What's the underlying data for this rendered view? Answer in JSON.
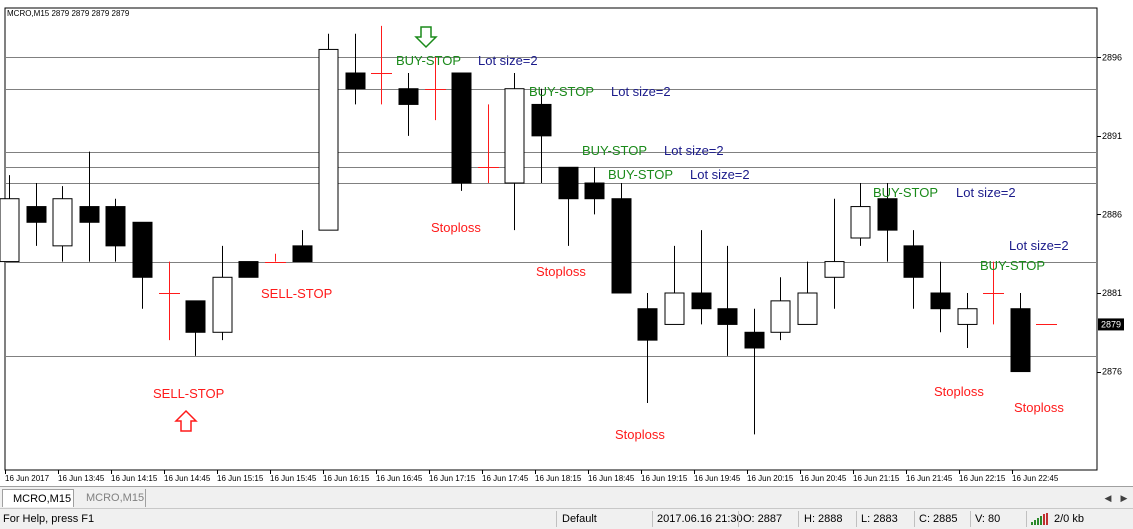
{
  "chart_title": "MCRO,M15  2879 2879 2879 2879",
  "current_price": "2879",
  "price_ticks": [
    "2896",
    "2891",
    "2886",
    "2881",
    "2876"
  ],
  "time_labels": [
    "16 Jun 2017",
    "16 Jun 13:45",
    "16 Jun 14:15",
    "16 Jun 14:45",
    "16 Jun 15:15",
    "16 Jun 15:45",
    "16 Jun 16:15",
    "16 Jun 16:45",
    "16 Jun 17:15",
    "16 Jun 17:45",
    "16 Jun 18:15",
    "16 Jun 18:45",
    "16 Jun 19:15",
    "16 Jun 19:45",
    "16 Jun 20:15",
    "16 Jun 20:45",
    "16 Jun 21:15",
    "16 Jun 21:45",
    "16 Jun 22:15",
    "16 Jun 22:45"
  ],
  "annotations": {
    "sell_stop": "SELL-STOP",
    "buy_stop": "BUY-STOP",
    "lot_size": "Lot size=2",
    "stoploss": "Stoploss"
  },
  "colors": {
    "buy": "#1a8a1a",
    "sell": "#ff1a1a",
    "lot": "#1a1a8a",
    "grid": "#808080",
    "bull": "#ffffff",
    "bear": "#000000"
  },
  "chart_data": {
    "type": "candlestick",
    "symbol": "MCRO",
    "timeframe": "M15",
    "ylim": [
      2870.5,
      2898.5
    ],
    "candles": [
      {
        "o": 2883.0,
        "h": 2888.5,
        "l": 2883.0,
        "c": 2887.0
      },
      {
        "o": 2886.5,
        "h": 2888.0,
        "l": 2884.0,
        "c": 2885.5
      },
      {
        "o": 2884.0,
        "h": 2887.8,
        "l": 2883.0,
        "c": 2887.0
      },
      {
        "o": 2886.5,
        "h": 2890.0,
        "l": 2883.0,
        "c": 2885.5
      },
      {
        "o": 2886.5,
        "h": 2887.0,
        "l": 2883.0,
        "c": 2884.0
      },
      {
        "o": 2885.5,
        "h": 2885.5,
        "l": 2880.0,
        "c": 2882.0
      },
      {
        "cross": true,
        "price": 2881.0,
        "h": 2883.0,
        "l": 2878.0
      },
      {
        "o": 2880.5,
        "h": 2880.5,
        "l": 2877.0,
        "c": 2878.5
      },
      {
        "o": 2878.5,
        "h": 2884.0,
        "l": 2878.0,
        "c": 2882.0
      },
      {
        "o": 2883.0,
        "h": 2883.0,
        "l": 2882.0,
        "c": 2882.0
      },
      {
        "cross": true,
        "price": 2883.0,
        "h": 2883.5,
        "l": 2883.0
      },
      {
        "o": 2884.0,
        "h": 2885.0,
        "l": 2883.0,
        "c": 2883.0
      },
      {
        "o": 2885.0,
        "h": 2897.5,
        "l": 2885.0,
        "c": 2896.5
      },
      {
        "o": 2895.0,
        "h": 2897.5,
        "l": 2893.0,
        "c": 2894.0
      },
      {
        "cross": true,
        "price": 2895.0,
        "h": 2898.0,
        "l": 2893.0
      },
      {
        "o": 2894.0,
        "h": 2895.0,
        "l": 2891.0,
        "c": 2893.0
      },
      {
        "cross": true,
        "price": 2894.0,
        "h": 2896.0,
        "l": 2892.0
      },
      {
        "o": 2895.0,
        "h": 2895.0,
        "l": 2887.5,
        "c": 2888.0
      },
      {
        "cross": true,
        "price": 2889.0,
        "h": 2893.0,
        "l": 2888.0
      },
      {
        "o": 2888.0,
        "h": 2895.0,
        "l": 2885.0,
        "c": 2894.0
      },
      {
        "o": 2893.0,
        "h": 2894.0,
        "l": 2888.0,
        "c": 2891.0
      },
      {
        "o": 2889.0,
        "h": 2889.0,
        "l": 2884.0,
        "c": 2887.0
      },
      {
        "o": 2888.0,
        "h": 2889.0,
        "l": 2886.0,
        "c": 2887.0
      },
      {
        "o": 2887.0,
        "h": 2888.0,
        "l": 2881.0,
        "c": 2881.0
      },
      {
        "o": 2880.0,
        "h": 2881.0,
        "l": 2874.0,
        "c": 2878.0
      },
      {
        "o": 2879.0,
        "h": 2884.0,
        "l": 2879.0,
        "c": 2881.0
      },
      {
        "o": 2881.0,
        "h": 2885.0,
        "l": 2879.0,
        "c": 2880.0
      },
      {
        "o": 2880.0,
        "h": 2884.0,
        "l": 2877.0,
        "c": 2879.0
      },
      {
        "o": 2878.5,
        "h": 2880.0,
        "l": 2872.0,
        "c": 2877.5
      },
      {
        "o": 2878.5,
        "h": 2882.0,
        "l": 2878.0,
        "c": 2880.5
      },
      {
        "o": 2879.0,
        "h": 2883.0,
        "l": 2879.0,
        "c": 2881.0
      },
      {
        "o": 2882.0,
        "h": 2887.0,
        "l": 2880.0,
        "c": 2883.0
      },
      {
        "o": 2884.5,
        "h": 2888.0,
        "l": 2884.0,
        "c": 2886.5
      },
      {
        "o": 2887.0,
        "h": 2888.0,
        "l": 2883.0,
        "c": 2885.0
      },
      {
        "o": 2884.0,
        "h": 2885.0,
        "l": 2880.0,
        "c": 2882.0
      },
      {
        "o": 2881.0,
        "h": 2883.0,
        "l": 2878.5,
        "c": 2880.0
      },
      {
        "o": 2879.0,
        "h": 2881.0,
        "l": 2877.5,
        "c": 2880.0
      },
      {
        "cross": true,
        "price": 2881.0,
        "h": 2883.0,
        "l": 2879.0
      },
      {
        "o": 2880.0,
        "h": 2881.0,
        "l": 2876.0,
        "c": 2876.0
      },
      {
        "cross": true,
        "price": 2879.0,
        "h": 2879.0,
        "l": 2879.0
      }
    ],
    "horizontal_levels": [
      2896.0,
      2894.0,
      2890.0,
      2889.0,
      2888.0,
      2883.0,
      2877.0
    ],
    "grid": false
  },
  "tabs": [
    {
      "label": "MCRO,M15",
      "active": true
    },
    {
      "label": "MCRO,M15",
      "active": false
    }
  ],
  "status": {
    "help": "For Help, press F1",
    "profile": "Default",
    "datetime": "2017.06.16 21:30",
    "open": "O: 2887",
    "high": "H: 2888",
    "low": "L: 2883",
    "close": "C: 2885",
    "volume": "V: 80",
    "traffic": "2/0 kb"
  }
}
